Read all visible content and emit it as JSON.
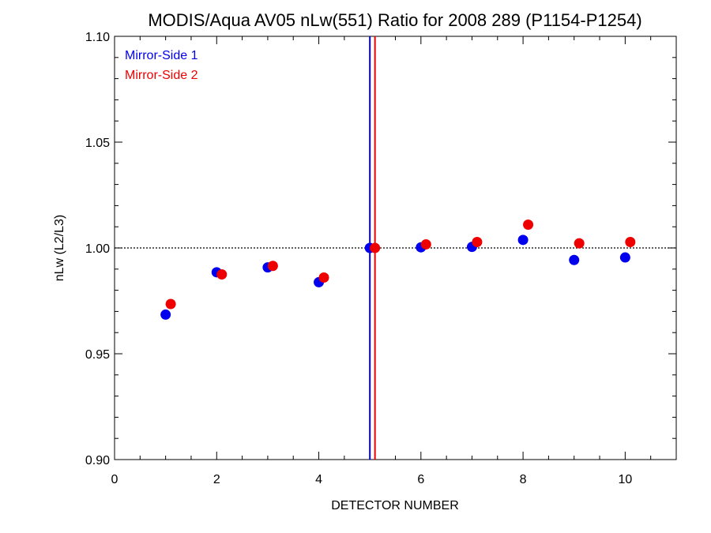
{
  "chart_data": {
    "type": "scatter",
    "title": "MODIS/Aqua AV05 nLw(551) Ratio for 2008 289 (P1154-P1254)",
    "xlabel": "DETECTOR NUMBER",
    "ylabel": "nLw (L2/L3)",
    "xlim": [
      0,
      11
    ],
    "ylim": [
      0.9,
      1.1
    ],
    "x_ticks": [
      0,
      2,
      4,
      6,
      8,
      10
    ],
    "x_tick_labels": [
      "0",
      "2",
      "4",
      "6",
      "8",
      "10"
    ],
    "y_ticks": [
      0.9,
      0.95,
      1.0,
      1.05,
      1.1
    ],
    "y_tick_labels": [
      "0.90",
      "0.95",
      "1.00",
      "1.05",
      "1.10"
    ],
    "reference_line_y": 1.0,
    "vertical_lines": [
      {
        "x": 5.0,
        "color": "#0000ee"
      },
      {
        "x": 5.1,
        "color": "#ee0000"
      }
    ],
    "legend_position": "top-left",
    "series": [
      {
        "name": "Mirror-Side 1",
        "color": "#0000ee",
        "x": [
          1,
          2,
          3,
          4,
          5,
          6,
          7,
          8,
          9,
          10
        ],
        "y": [
          0.9685,
          0.9885,
          0.9908,
          0.9838,
          1.0,
          1.0003,
          1.0005,
          1.0038,
          0.9943,
          0.9955
        ]
      },
      {
        "name": "Mirror-Side 2",
        "color": "#ee0000",
        "x": [
          1.1,
          2.1,
          3.1,
          4.1,
          5.1,
          6.1,
          7.1,
          8.1,
          9.1,
          10.1
        ],
        "y": [
          0.9735,
          0.9875,
          0.9915,
          0.986,
          1.0,
          1.0017,
          1.0028,
          1.011,
          1.0022,
          1.0028
        ]
      }
    ]
  }
}
